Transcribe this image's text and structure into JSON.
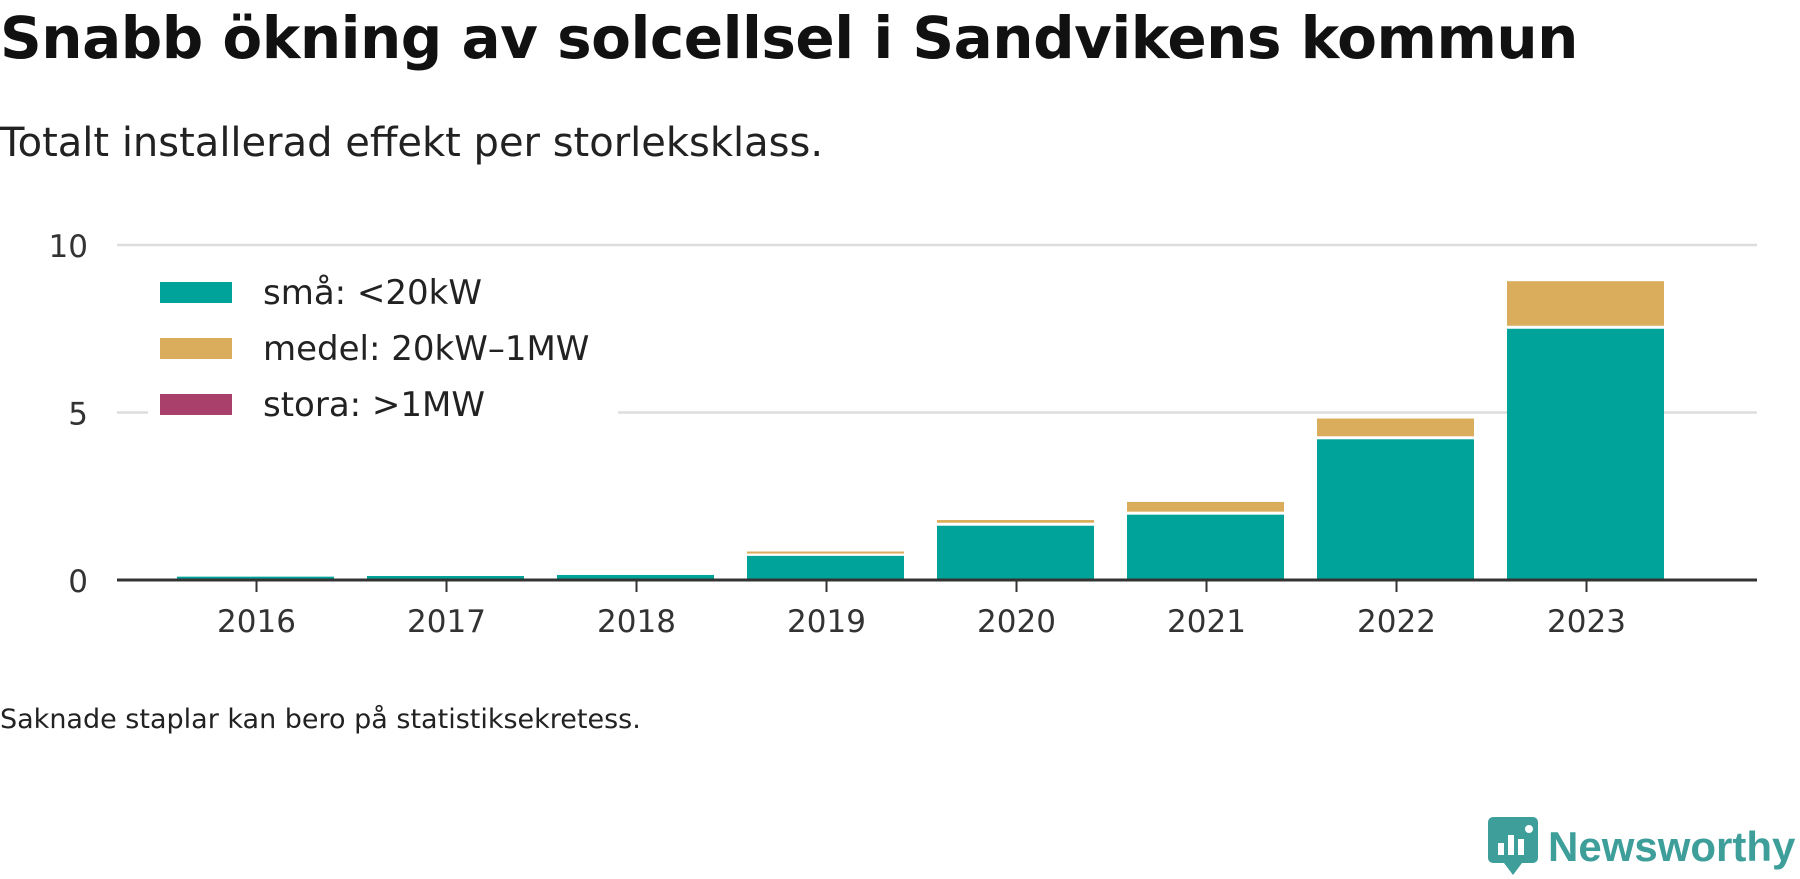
{
  "header": {
    "title": "Snabb ökning av solcellsel i Sandvikens kommun",
    "subtitle": "Totalt installerad effekt per storleksklass."
  },
  "footer": {
    "note": "Saknade staplar kan bero på statistiksekretess.",
    "brand": "Newsworthy",
    "brand_color": "#3d9e9a"
  },
  "chart_data": {
    "type": "bar",
    "stacked": true,
    "title": "Snabb ökning av solcellsel i Sandvikens kommun",
    "subtitle": "Totalt installerad effekt per storleksklass.",
    "categories": [
      "2016",
      "2017",
      "2018",
      "2019",
      "2020",
      "2021",
      "2022",
      "2023"
    ],
    "series": [
      {
        "name": "små: <20kW",
        "color": "#00a39a",
        "values": [
          0.1,
          0.12,
          0.15,
          0.72,
          1.62,
          1.95,
          4.2,
          7.5
        ]
      },
      {
        "name": "medel: 20kW–1MW",
        "color": "#d9ad5b",
        "values": [
          0,
          0,
          0,
          0.13,
          0.17,
          0.38,
          0.62,
          1.42
        ]
      },
      {
        "name": "stora: >1MW",
        "color": "#a8406b",
        "values": [
          0,
          0,
          0,
          0,
          0,
          0,
          0,
          0
        ]
      }
    ],
    "xlabel": "",
    "ylabel": "",
    "ylim": [
      0,
      10
    ],
    "yticks": [
      0,
      5,
      10
    ],
    "grid": true,
    "legend_position": "top-left"
  }
}
